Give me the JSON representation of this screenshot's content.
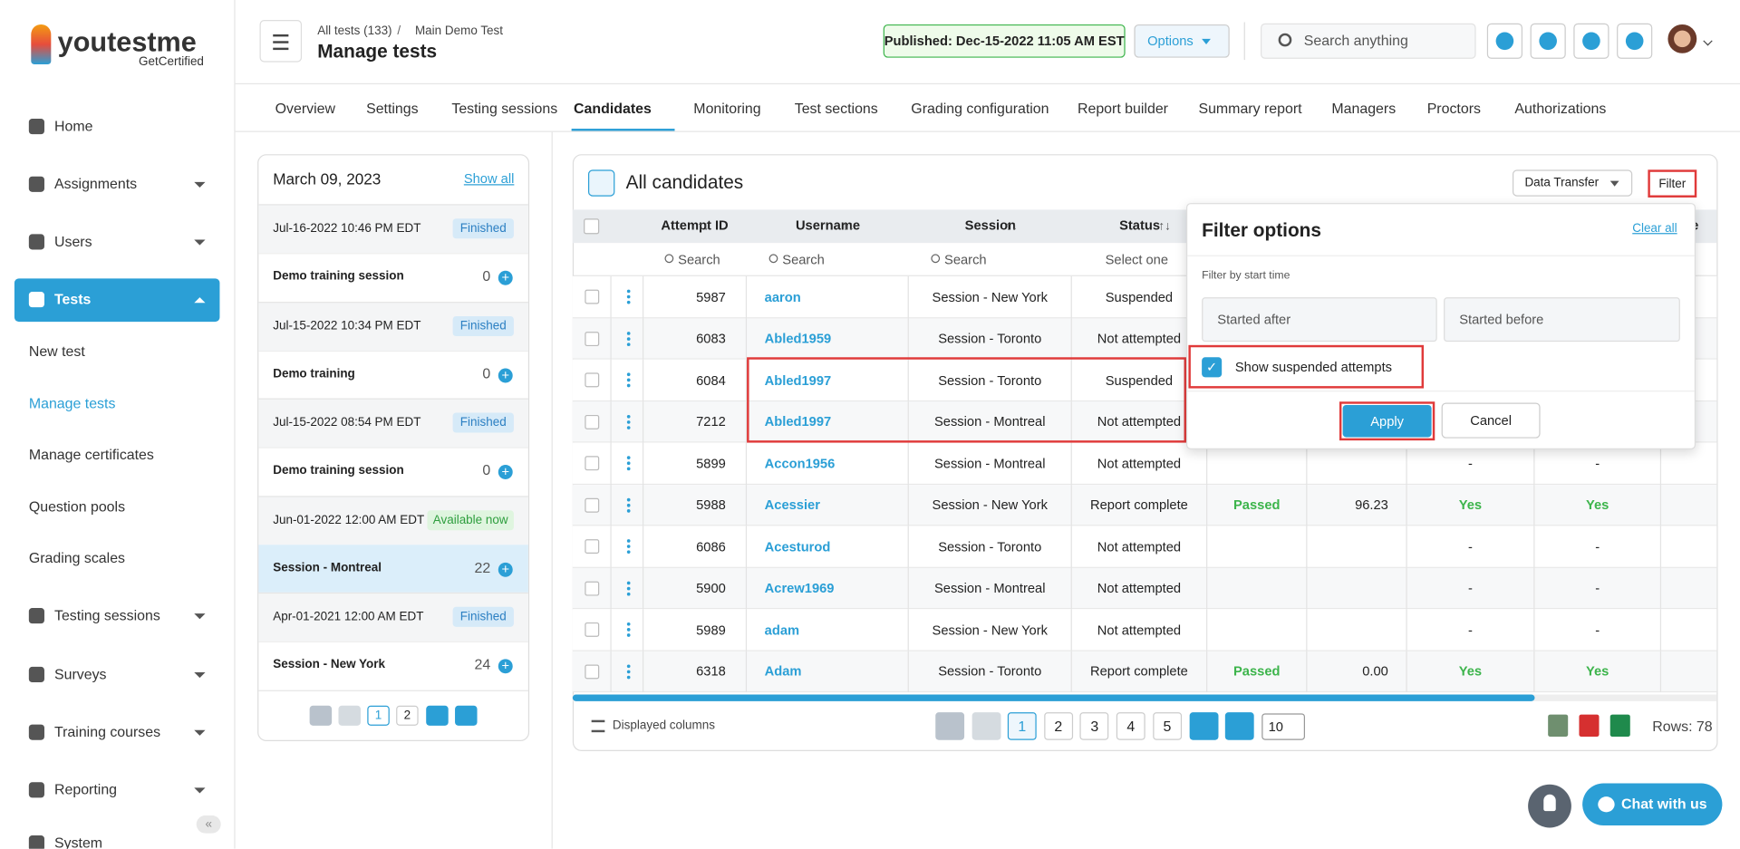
{
  "logo": {
    "name": "youtestme",
    "tagline": "GetCertified"
  },
  "sidebar": {
    "items": [
      "Home",
      "Assignments",
      "Users",
      "Tests"
    ],
    "sub_items": [
      "New test",
      "Manage tests",
      "Manage certificates",
      "Question pools",
      "Grading scales"
    ],
    "more_items": [
      "Testing sessions",
      "Surveys",
      "Training courses",
      "Reporting",
      "System"
    ]
  },
  "header": {
    "breadcrumb": [
      "All tests (133)",
      "Main Demo Test"
    ],
    "title": "Manage tests",
    "published": "Published: Dec-15-2022 11:05 AM EST",
    "options": "Options",
    "search": "Search anything"
  },
  "tabs": [
    "Overview",
    "Settings",
    "Testing sessions",
    "Candidates",
    "Monitoring",
    "Test sections",
    "Grading configuration",
    "Report builder",
    "Summary report",
    "Managers",
    "Proctors",
    "Authorizations"
  ],
  "sessions": {
    "date": "March 09, 2023",
    "show_all": "Show all",
    "items": [
      {
        "date": "Jul-16-2022 10:46 PM EDT",
        "status": "Finished",
        "name": "Demo training session",
        "count": "0"
      },
      {
        "date": "Jul-15-2022 10:34 PM EDT",
        "status": "Finished",
        "name": "Demo training",
        "count": "0"
      },
      {
        "date": "Jul-15-2022 08:54 PM EDT",
        "status": "Finished",
        "name": "Demo training session",
        "count": "0"
      },
      {
        "date": "Jun-01-2022 12:00 AM EDT",
        "status": "Available now",
        "name": "Session - Montreal",
        "count": "22"
      },
      {
        "date": "Apr-01-2021 12:00 AM EDT",
        "status": "Finished",
        "name": "Session - New York",
        "count": "24"
      }
    ],
    "pages": [
      "1",
      "2"
    ]
  },
  "candidates": {
    "title": "All candidates",
    "data_transfer": "Data Transfer",
    "filter": "Filter",
    "columns": [
      "Attempt ID",
      "Username",
      "Session",
      "Status",
      "ible"
    ],
    "search": [
      "Search",
      "Search",
      "Search",
      "Select one"
    ],
    "rows": [
      [
        "5987",
        "aaron",
        "Session - New York",
        "Suspended"
      ],
      [
        "6083",
        "Abled1959",
        "Session - Toronto",
        "Not attempted"
      ],
      [
        "6084",
        "Abled1997",
        "Session - Toronto",
        "Suspended"
      ],
      [
        "7212",
        "Abled1997",
        "Session - Montreal",
        "Not attempted"
      ],
      [
        "5899",
        "Accon1956",
        "Session - Montreal",
        "Not attempted",
        "",
        "",
        "-",
        "-"
      ],
      [
        "5988",
        "Acessier",
        "Session - New York",
        "Report complete",
        "Passed",
        "96.23",
        "Yes",
        "Yes"
      ],
      [
        "6086",
        "Acesturod",
        "Session - Toronto",
        "Not attempted",
        "",
        "",
        "-",
        "-"
      ],
      [
        "5900",
        "Acrew1969",
        "Session - Montreal",
        "Not attempted",
        "",
        "",
        "-",
        "-"
      ],
      [
        "5989",
        "adam",
        "Session - New York",
        "Not attempted",
        "",
        "",
        "-",
        "-"
      ],
      [
        "6318",
        "Adam",
        "Session - Toronto",
        "Report complete",
        "Passed",
        "0.00",
        "Yes",
        "Yes"
      ]
    ],
    "displayed_columns": "Displayed columns",
    "pages": [
      "1",
      "2",
      "3",
      "4",
      "5"
    ],
    "page_size": "10",
    "rows_count": "Rows: 78"
  },
  "filter": {
    "title": "Filter options",
    "clear_all": "Clear all",
    "label": "Filter by start time",
    "started_after": "Started after",
    "started_before": "Started before",
    "show_suspended": "Show suspended attempts",
    "apply": "Apply",
    "cancel": "Cancel"
  },
  "chat": "Chat with us"
}
